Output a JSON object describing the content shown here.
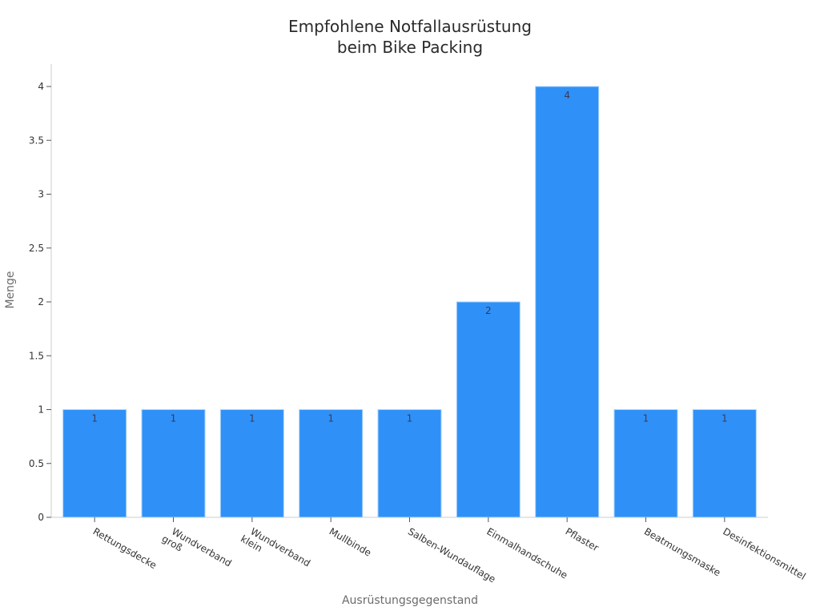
{
  "chart_data": {
    "type": "bar",
    "title": "Empfohlene Notfallausrüstung beim Bike Packing",
    "title_lines": [
      "Empfohlene Notfallausrüstung",
      "beim Bike Packing"
    ],
    "xlabel": "Ausrüstungsgegenstand",
    "ylabel": "Menge",
    "categories": [
      "Rettungsdecke",
      "Wundverband groß",
      "Wundverband klein",
      "Mullbinde",
      "Salben-Wundauflage",
      "Einmalhandschuhe",
      "Pflaster",
      "Beatmungsmaske",
      "Desinfektionsmittel"
    ],
    "category_label_lines": [
      [
        "Rettungsdecke"
      ],
      [
        "Wundverband",
        "groß"
      ],
      [
        "Wundverband",
        "klein"
      ],
      [
        "Mullbinde"
      ],
      [
        "Salben-Wundauflage"
      ],
      [
        "Einmalhandschuhe"
      ],
      [
        "Pflaster"
      ],
      [
        "Beatmungsmaske"
      ],
      [
        "Desinfektionsmittel"
      ]
    ],
    "values": [
      1,
      1,
      1,
      1,
      1,
      2,
      4,
      1,
      1
    ],
    "data_labels": [
      "1",
      "1",
      "1",
      "1",
      "1",
      "2",
      "4",
      "1",
      "1"
    ],
    "ylim": [
      0,
      4.2
    ],
    "yticks": [
      0,
      0.5,
      1,
      1.5,
      2,
      2.5,
      3,
      3.5,
      4
    ],
    "ytick_labels": [
      "0",
      "0.5",
      "1",
      "1.5",
      "2",
      "2.5",
      "3",
      "3.5",
      "4"
    ],
    "grid": false,
    "legend": null,
    "bar_color": "#2f91f7",
    "bar_edge_color": "#a9d2fb"
  }
}
